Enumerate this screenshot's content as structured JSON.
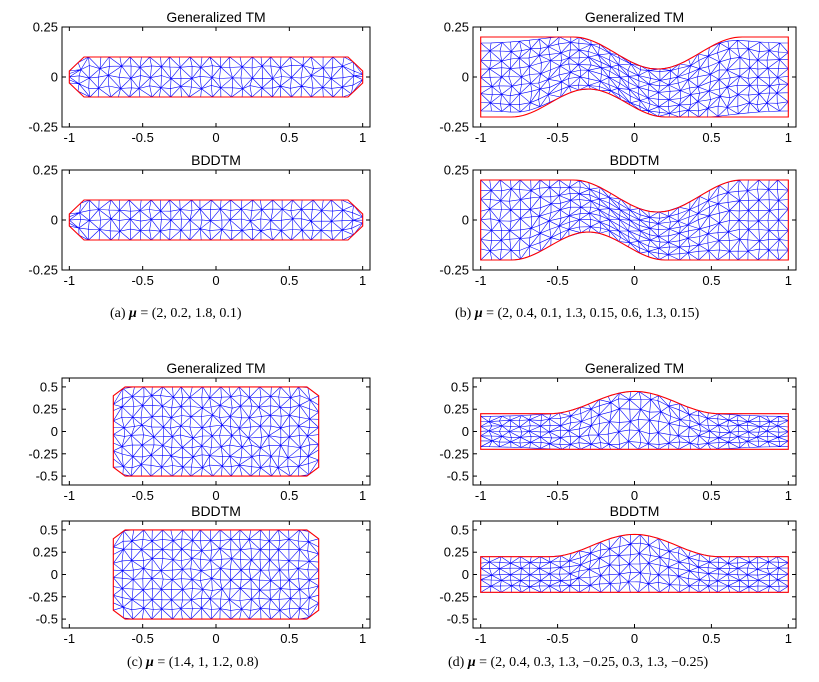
{
  "figure": {
    "subfigures": [
      {
        "id": "a",
        "caption_label": "(a)",
        "caption_mu": "= (2, 0.2, 1.8, 0.1)",
        "mu": [
          2,
          0.2,
          1.8,
          0.1
        ],
        "shape": "octagon",
        "shape_params": {
          "x_outer": 1.0,
          "x_inner": 0.9,
          "h_outer": 0.1,
          "h_inner": 0.03
        },
        "panels": [
          {
            "title": "Generalized TM",
            "xlim": [
              -1.05,
              1.05
            ],
            "ylim": [
              -0.25,
              0.25
            ],
            "xticks": [
              "-1",
              "-0.5",
              "0",
              "0.5",
              "1"
            ],
            "xtick_values": [
              -1,
              -0.5,
              0,
              0.5,
              1
            ],
            "yticks": [
              "0.25",
              "0",
              "-0.25"
            ],
            "ytick_values": [
              0.25,
              0,
              -0.25
            ]
          },
          {
            "title": "BDDTM",
            "xlim": [
              -1.05,
              1.05
            ],
            "ylim": [
              -0.25,
              0.25
            ],
            "xticks": [
              "-1",
              "-0.5",
              "0",
              "0.5",
              "1"
            ],
            "xtick_values": [
              -1,
              -0.5,
              0,
              0.5,
              1
            ],
            "yticks": [
              "0.25",
              "0",
              "-0.25"
            ],
            "ytick_values": [
              0.25,
              0,
              -0.25
            ]
          }
        ]
      },
      {
        "id": "b",
        "caption_label": "(b)",
        "caption_mu": "= (2, 0.4, 0.1, 1.3, 0.15, 0.6, 1.3, 0.15)",
        "mu": [
          2,
          0.4,
          0.1,
          1.3,
          0.15,
          0.6,
          1.3,
          0.15
        ],
        "shape": "wavy",
        "panels": [
          {
            "title": "Generalized TM",
            "xlim": [
              -1.05,
              1.05
            ],
            "ylim": [
              -0.25,
              0.25
            ],
            "xticks": [
              "-1",
              "-0.5",
              "0",
              "0.5",
              "1"
            ],
            "xtick_values": [
              -1,
              -0.5,
              0,
              0.5,
              1
            ],
            "yticks": [
              "0.25",
              "0",
              "-0.25"
            ],
            "ytick_values": [
              0.25,
              0,
              -0.25
            ]
          },
          {
            "title": "BDDTM",
            "xlim": [
              -1.05,
              1.05
            ],
            "ylim": [
              -0.25,
              0.25
            ],
            "xticks": [
              "-1",
              "-0.5",
              "0",
              "0.5",
              "1"
            ],
            "xtick_values": [
              -1,
              -0.5,
              0,
              0.5,
              1
            ],
            "yticks": [
              "0.25",
              "0",
              "-0.25"
            ],
            "ytick_values": [
              0.25,
              0,
              -0.25
            ]
          }
        ]
      },
      {
        "id": "c",
        "caption_label": "(c)",
        "caption_mu": "= (1.4, 1, 1.2, 0.8)",
        "mu": [
          1.4,
          1,
          1.2,
          0.8
        ],
        "shape": "octagon",
        "shape_params": {
          "x_outer": 0.7,
          "x_inner": 0.62,
          "h_outer": 0.5,
          "h_inner": 0.4
        },
        "panels": [
          {
            "title": "Generalized TM",
            "xlim": [
              -1.05,
              1.05
            ],
            "ylim": [
              -0.6,
              0.6
            ],
            "xticks": [
              "-1",
              "-0.5",
              "0",
              "0.5",
              "1"
            ],
            "xtick_values": [
              -1,
              -0.5,
              0,
              0.5,
              1
            ],
            "yticks": [
              "0.5",
              "0.25",
              "0",
              "-0.25",
              "-0.5"
            ],
            "ytick_values": [
              0.5,
              0.25,
              0,
              -0.25,
              -0.5
            ]
          },
          {
            "title": "BDDTM",
            "xlim": [
              -1.05,
              1.05
            ],
            "ylim": [
              -0.6,
              0.6
            ],
            "xticks": [
              "-1",
              "-0.5",
              "0",
              "0.5",
              "1"
            ],
            "xtick_values": [
              -1,
              -0.5,
              0,
              0.5,
              1
            ],
            "yticks": [
              "0.5",
              "0.25",
              "0",
              "-0.25",
              "-0.5"
            ],
            "ytick_values": [
              0.5,
              0.25,
              0,
              -0.25,
              -0.5
            ]
          }
        ]
      },
      {
        "id": "d",
        "caption_label": "(d)",
        "caption_mu": "= (2, 0.4, 0.3, 1.3, −0.25, 0.3, 1.3, −0.25)",
        "mu": [
          2,
          0.4,
          0.3,
          1.3,
          -0.25,
          0.3,
          1.3,
          -0.25
        ],
        "shape": "bulge",
        "panels": [
          {
            "title": "Generalized TM",
            "xlim": [
              -1.05,
              1.05
            ],
            "ylim": [
              -0.6,
              0.6
            ],
            "xticks": [
              "-1",
              "-0.5",
              "0",
              "0.5",
              "1"
            ],
            "xtick_values": [
              -1,
              -0.5,
              0,
              0.5,
              1
            ],
            "yticks": [
              "0.5",
              "0.25",
              "0",
              "-0.25",
              "-0.5"
            ],
            "ytick_values": [
              0.5,
              0.25,
              0,
              -0.25,
              -0.5
            ]
          },
          {
            "title": "BDDTM",
            "xlim": [
              -1.05,
              1.05
            ],
            "ylim": [
              -0.6,
              0.6
            ],
            "xticks": [
              "-1",
              "-0.5",
              "0",
              "0.5",
              "1"
            ],
            "xtick_values": [
              -1,
              -0.5,
              0,
              0.5,
              1
            ],
            "yticks": [
              "0.5",
              "0.25",
              "0",
              "-0.25",
              "-0.5"
            ],
            "ytick_values": [
              0.5,
              0.25,
              0,
              -0.25,
              -0.5
            ]
          }
        ]
      }
    ],
    "colors": {
      "mesh": "#0000ff",
      "boundary": "#ff0000",
      "axes": "#000000"
    },
    "mu_symbol": "μ"
  }
}
